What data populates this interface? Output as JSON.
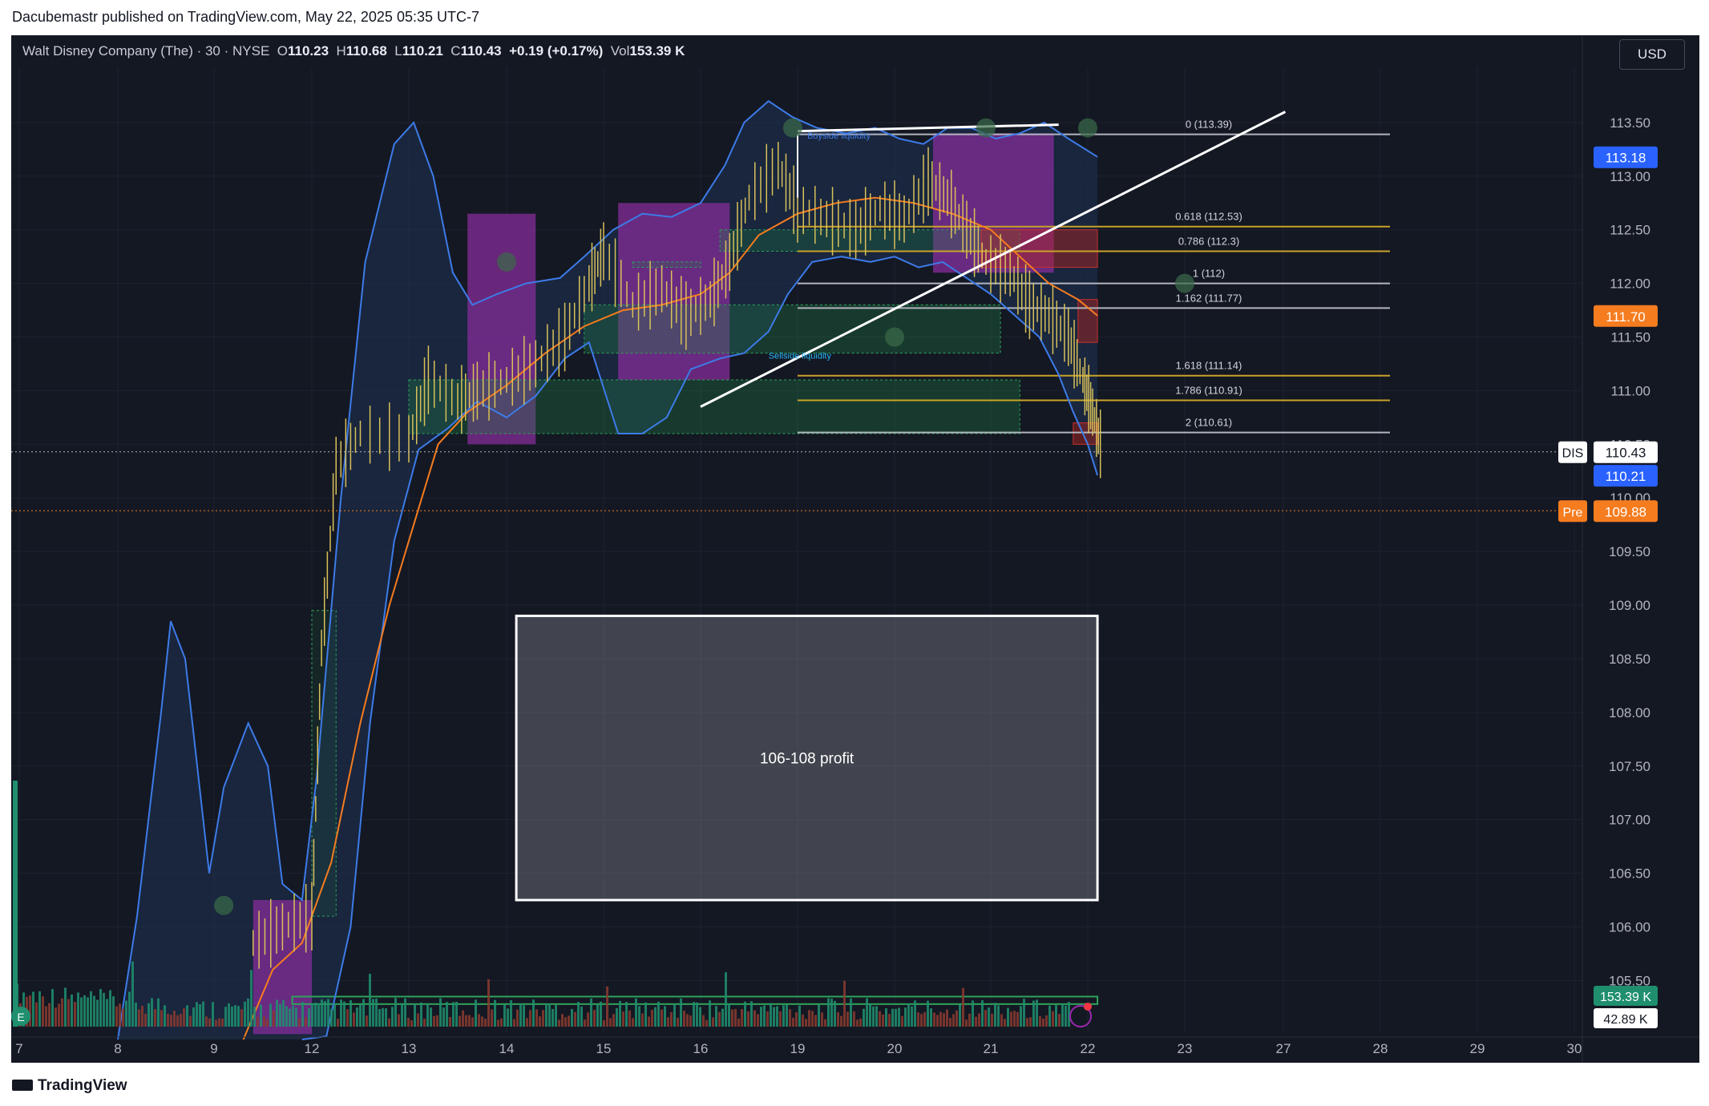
{
  "publisher_line": "Dacubemastr published on TradingView.com, May 22, 2025 05:35 UTC-7",
  "brand": "TradingView",
  "legend": {
    "name": "Walt Disney Company (The) · 30 · NYSE",
    "o_label": "O",
    "o": "110.23",
    "h_label": "H",
    "h": "110.68",
    "l_label": "L",
    "l": "110.21",
    "c_label": "C",
    "c": "110.43",
    "change": "+0.19 (+0.17%)",
    "vol_label": "Vol",
    "vol": "153.39 K"
  },
  "currency_button": "USD",
  "colors": {
    "background": "#141823",
    "bollinger": "#3d7be8",
    "ema": "#f57c1f",
    "candle": "#d8c15a",
    "fib_gold": "#c9a227",
    "fib_gray": "#b2b5be",
    "magenta_zone": "#8b2ea0",
    "green_zone": "#1f7a46",
    "red_zone": "#b3261e",
    "price_blue": "#2962ff",
    "price_orange": "#f57c1f",
    "vol_green": "#1f8f6e",
    "vol_red": "#8a3b2f"
  },
  "chart_data": {
    "type": "candlestick",
    "symbol": "DIS",
    "title": "Walt Disney Company (The) · 30 · NYSE",
    "ylim": [
      104.95,
      114.0
    ],
    "y_ticks": [
      105.5,
      106.0,
      106.5,
      107.0,
      107.5,
      108.0,
      108.5,
      109.0,
      109.5,
      110.0,
      110.5,
      111.0,
      111.5,
      112.0,
      112.5,
      113.0,
      113.5
    ],
    "x_ticks": [
      "7",
      "8",
      "9",
      "12",
      "13",
      "14",
      "15",
      "16",
      "19",
      "20",
      "21",
      "22",
      "23",
      "27",
      "28",
      "29",
      "30"
    ],
    "price_labels": [
      {
        "name": "upper band",
        "value": "113.18",
        "color": "#2962ff"
      },
      {
        "name": "ema",
        "value": "111.70",
        "color": "#f57c1f"
      },
      {
        "name": "DIS",
        "value": "110.43",
        "color": "#ffffff"
      },
      {
        "name": "lower band",
        "value": "110.21",
        "color": "#2962ff"
      },
      {
        "name": "Pre",
        "value": "109.88",
        "color": "#f57c1f"
      }
    ],
    "volume_labels": [
      "153.39 K",
      "42.89 K"
    ],
    "fib_levels": [
      {
        "label": "0 (113.39)",
        "value": 113.39
      },
      {
        "label": "0.618 (112.53)",
        "value": 112.53
      },
      {
        "label": "0.786 (112.3)",
        "value": 112.3
      },
      {
        "label": "1 (112)",
        "value": 112.0
      },
      {
        "label": "1.162 (111.77)",
        "value": 111.77
      },
      {
        "label": "1.618 (111.14)",
        "value": 111.14
      },
      {
        "label": "1.786 (110.91)",
        "value": 110.91
      },
      {
        "label": "2 (110.61)",
        "value": 110.61
      }
    ],
    "annotations": [
      "106-108 profit",
      "Buyside liquidity",
      "Sellside liquidity"
    ],
    "profit_box": {
      "x_from": 12.1,
      "x_to": 18.1,
      "y_low": 106.25,
      "y_high": 108.9
    },
    "price_series": [
      {
        "x": 9.4,
        "v": 105.85
      },
      {
        "x": 9.7,
        "v": 106.0
      },
      {
        "x": 10.0,
        "v": 106.1
      },
      {
        "x": 10.1,
        "v": 108.6
      },
      {
        "x": 10.25,
        "v": 110.3
      },
      {
        "x": 10.5,
        "v": 110.6
      },
      {
        "x": 11.0,
        "v": 110.55
      },
      {
        "x": 11.2,
        "v": 111.1
      },
      {
        "x": 11.5,
        "v": 110.9
      },
      {
        "x": 11.7,
        "v": 111.0
      },
      {
        "x": 12.0,
        "v": 111.1
      },
      {
        "x": 12.3,
        "v": 111.25
      },
      {
        "x": 12.6,
        "v": 111.5
      },
      {
        "x": 12.85,
        "v": 112.0
      },
      {
        "x": 13.0,
        "v": 112.3
      },
      {
        "x": 13.3,
        "v": 111.8
      },
      {
        "x": 13.6,
        "v": 111.95
      },
      {
        "x": 13.85,
        "v": 111.7
      },
      {
        "x": 14.1,
        "v": 111.85
      },
      {
        "x": 14.3,
        "v": 112.2
      },
      {
        "x": 14.5,
        "v": 112.8
      },
      {
        "x": 14.8,
        "v": 113.1
      },
      {
        "x": 15.0,
        "v": 112.7
      },
      {
        "x": 15.3,
        "v": 112.6
      },
      {
        "x": 15.6,
        "v": 112.5
      },
      {
        "x": 15.85,
        "v": 112.7
      },
      {
        "x": 16.1,
        "v": 112.6
      },
      {
        "x": 16.35,
        "v": 112.95
      },
      {
        "x": 16.55,
        "v": 112.8
      },
      {
        "x": 16.75,
        "v": 112.5
      },
      {
        "x": 16.95,
        "v": 112.2
      },
      {
        "x": 17.2,
        "v": 112.1
      },
      {
        "x": 17.4,
        "v": 111.8
      },
      {
        "x": 17.6,
        "v": 111.7
      },
      {
        "x": 17.8,
        "v": 111.5
      },
      {
        "x": 17.95,
        "v": 111.1
      },
      {
        "x": 18.05,
        "v": 110.8
      },
      {
        "x": 18.15,
        "v": 110.43
      }
    ],
    "ema_series": [
      {
        "x": 9.3,
        "v": 104.95
      },
      {
        "x": 9.6,
        "v": 105.6
      },
      {
        "x": 9.9,
        "v": 105.85
      },
      {
        "x": 10.2,
        "v": 106.6
      },
      {
        "x": 10.5,
        "v": 107.9
      },
      {
        "x": 10.8,
        "v": 109.0
      },
      {
        "x": 11.1,
        "v": 109.9
      },
      {
        "x": 11.3,
        "v": 110.5
      },
      {
        "x": 11.6,
        "v": 110.8
      },
      {
        "x": 12.0,
        "v": 111.05
      },
      {
        "x": 12.4,
        "v": 111.35
      },
      {
        "x": 12.8,
        "v": 111.6
      },
      {
        "x": 13.2,
        "v": 111.75
      },
      {
        "x": 13.6,
        "v": 111.8
      },
      {
        "x": 14.0,
        "v": 111.9
      },
      {
        "x": 14.3,
        "v": 112.1
      },
      {
        "x": 14.6,
        "v": 112.45
      },
      {
        "x": 15.0,
        "v": 112.65
      },
      {
        "x": 15.4,
        "v": 112.75
      },
      {
        "x": 15.8,
        "v": 112.8
      },
      {
        "x": 16.2,
        "v": 112.75
      },
      {
        "x": 16.6,
        "v": 112.65
      },
      {
        "x": 17.0,
        "v": 112.5
      },
      {
        "x": 17.3,
        "v": 112.25
      },
      {
        "x": 17.6,
        "v": 112.0
      },
      {
        "x": 17.9,
        "v": 111.85
      },
      {
        "x": 18.1,
        "v": 111.7
      }
    ],
    "upper_band": [
      {
        "x": 8.0,
        "v": 104.95
      },
      {
        "x": 8.2,
        "v": 106.1
      },
      {
        "x": 8.45,
        "v": 108.0
      },
      {
        "x": 8.55,
        "v": 108.85
      },
      {
        "x": 8.7,
        "v": 108.5
      },
      {
        "x": 8.95,
        "v": 106.5
      },
      {
        "x": 9.1,
        "v": 107.3
      },
      {
        "x": 9.35,
        "v": 107.9
      },
      {
        "x": 9.55,
        "v": 107.5
      },
      {
        "x": 9.7,
        "v": 106.4
      },
      {
        "x": 9.9,
        "v": 106.25
      },
      {
        "x": 10.05,
        "v": 107.4
      },
      {
        "x": 10.3,
        "v": 110.0
      },
      {
        "x": 10.55,
        "v": 112.2
      },
      {
        "x": 10.85,
        "v": 113.3
      },
      {
        "x": 11.05,
        "v": 113.5
      },
      {
        "x": 11.25,
        "v": 113.0
      },
      {
        "x": 11.45,
        "v": 112.1
      },
      {
        "x": 11.65,
        "v": 111.8
      },
      {
        "x": 11.9,
        "v": 111.9
      },
      {
        "x": 12.2,
        "v": 112.0
      },
      {
        "x": 12.55,
        "v": 112.05
      },
      {
        "x": 12.8,
        "v": 112.25
      },
      {
        "x": 13.1,
        "v": 112.5
      },
      {
        "x": 13.4,
        "v": 112.65
      },
      {
        "x": 13.7,
        "v": 112.62
      },
      {
        "x": 14.0,
        "v": 112.75
      },
      {
        "x": 14.25,
        "v": 113.1
      },
      {
        "x": 14.45,
        "v": 113.5
      },
      {
        "x": 14.7,
        "v": 113.7
      },
      {
        "x": 14.95,
        "v": 113.55
      },
      {
        "x": 15.2,
        "v": 113.45
      },
      {
        "x": 15.5,
        "v": 113.4
      },
      {
        "x": 15.8,
        "v": 113.45
      },
      {
        "x": 16.05,
        "v": 113.35
      },
      {
        "x": 16.3,
        "v": 113.3
      },
      {
        "x": 16.55,
        "v": 113.45
      },
      {
        "x": 16.8,
        "v": 113.45
      },
      {
        "x": 17.05,
        "v": 113.35
      },
      {
        "x": 17.3,
        "v": 113.4
      },
      {
        "x": 17.55,
        "v": 113.5
      },
      {
        "x": 17.8,
        "v": 113.35
      },
      {
        "x": 18.1,
        "v": 113.18
      }
    ],
    "lower_band": [
      {
        "x": 9.9,
        "v": 104.95
      },
      {
        "x": 10.15,
        "v": 104.98
      },
      {
        "x": 10.4,
        "v": 106.0
      },
      {
        "x": 10.6,
        "v": 107.9
      },
      {
        "x": 10.85,
        "v": 109.6
      },
      {
        "x": 11.1,
        "v": 110.45
      },
      {
        "x": 11.4,
        "v": 110.65
      },
      {
        "x": 11.7,
        "v": 110.9
      },
      {
        "x": 12.0,
        "v": 110.75
      },
      {
        "x": 12.3,
        "v": 110.95
      },
      {
        "x": 12.6,
        "v": 111.3
      },
      {
        "x": 12.85,
        "v": 111.45
      },
      {
        "x": 13.15,
        "v": 110.6
      },
      {
        "x": 13.4,
        "v": 110.6
      },
      {
        "x": 13.65,
        "v": 110.75
      },
      {
        "x": 13.9,
        "v": 111.2
      },
      {
        "x": 14.2,
        "v": 111.3
      },
      {
        "x": 14.45,
        "v": 111.35
      },
      {
        "x": 14.7,
        "v": 111.55
      },
      {
        "x": 14.9,
        "v": 111.9
      },
      {
        "x": 15.15,
        "v": 112.2
      },
      {
        "x": 15.45,
        "v": 112.25
      },
      {
        "x": 15.75,
        "v": 112.2
      },
      {
        "x": 16.0,
        "v": 112.25
      },
      {
        "x": 16.25,
        "v": 112.15
      },
      {
        "x": 16.5,
        "v": 112.2
      },
      {
        "x": 16.75,
        "v": 112.05
      },
      {
        "x": 17.0,
        "v": 111.9
      },
      {
        "x": 17.25,
        "v": 111.7
      },
      {
        "x": 17.5,
        "v": 111.5
      },
      {
        "x": 17.7,
        "v": 111.15
      },
      {
        "x": 17.85,
        "v": 110.8
      },
      {
        "x": 18.0,
        "v": 110.5
      },
      {
        "x": 18.1,
        "v": 110.21
      }
    ]
  }
}
